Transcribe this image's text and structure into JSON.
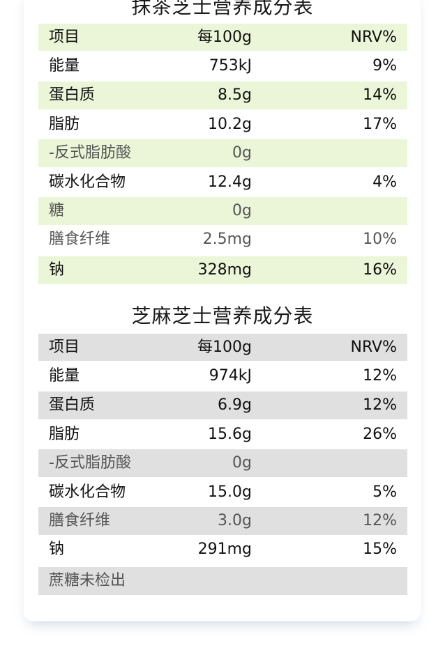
{
  "table1": {
    "title": "抹茶芝士营养成分表",
    "header": {
      "name": "项目",
      "value": "每100g",
      "nrv": "NRV%"
    },
    "rows": [
      {
        "name": "能量",
        "value": "753kJ",
        "nrv": "9%"
      },
      {
        "name": "蛋白质",
        "value": "8.5g",
        "nrv": "14%"
      },
      {
        "name": "脂肪",
        "value": "10.2g",
        "nrv": "17%"
      },
      {
        "name": "-反式脂肪酸",
        "value": "0g",
        "nrv": ""
      },
      {
        "name": "碳水化合物",
        "value": "12.4g",
        "nrv": "4%"
      },
      {
        "name": "糖",
        "value": "0g",
        "nrv": ""
      },
      {
        "name": "膳食纤维",
        "value": "2.5mg",
        "nrv": "10%"
      },
      {
        "name": "钠",
        "value": "328mg",
        "nrv": "16%"
      }
    ]
  },
  "table2": {
    "title": "芝麻芝士营养成分表",
    "header": {
      "name": "项目",
      "value": "每100g",
      "nrv": "NRV%"
    },
    "rows": [
      {
        "name": "能量",
        "value": "974kJ",
        "nrv": "12%"
      },
      {
        "name": "蛋白质",
        "value": "6.9g",
        "nrv": "12%"
      },
      {
        "name": "脂肪",
        "value": "15.6g",
        "nrv": "26%"
      },
      {
        "name": "-反式脂肪酸",
        "value": "0g",
        "nrv": ""
      },
      {
        "name": "碳水化合物",
        "value": "15.0g",
        "nrv": "5%"
      },
      {
        "name": "膳食纤维",
        "value": "3.0g",
        "nrv": "12%"
      },
      {
        "name": "钠",
        "value": "291mg",
        "nrv": "15%"
      }
    ],
    "footnote": "蔗糖未检出"
  },
  "colors": {
    "table1_shade": "#ebf6d8",
    "table2_shade": "#e0e0e0"
  }
}
